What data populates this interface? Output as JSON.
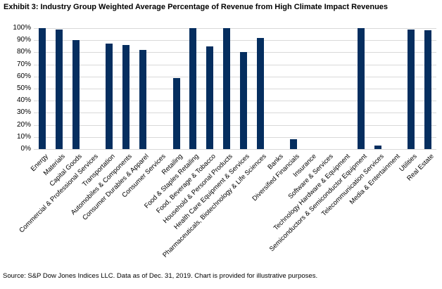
{
  "title": "Exhibit 3: Industry Group Weighted Average Percentage of Revenue from High Climate Impact Revenues",
  "source_note": "Source: S&P Dow Jones Indices LLC. Data as of Dec. 31, 2019. Chart is provided for illustrative purposes.",
  "colors": {
    "bar": "#052e5f",
    "gridline": "#d9d9d9",
    "text": "#000000",
    "background": "#ffffff"
  },
  "chart_data": {
    "type": "bar",
    "title": "Exhibit 3: Industry Group Weighted Average Percentage of Revenue from High Climate Impact Revenues",
    "categories": [
      "Energy",
      "Materials",
      "Capital Goods",
      "Commercial & Professional Services",
      "Transportation",
      "Automobiles & Components",
      "Consumer Durables & Apparel",
      "Consumer Services",
      "Retailing",
      "Food & Staples Retailing",
      "Food, Beverage & Tobacco",
      "Household & Personal Products",
      "Health Care Equipment & Services",
      "Pharmaceuticals, Biotechnology & Life Sciences",
      "Banks",
      "Diversified Financials",
      "Insurance",
      "Software & Services",
      "Technology Hardware & Equipment",
      "Semiconductors & Semiconductor Equipment",
      "Telecommunication Services",
      "Media & Entertainment",
      "Utilities",
      "Real Estate"
    ],
    "values": [
      100,
      99,
      90,
      0,
      87,
      86,
      82,
      0,
      59,
      100,
      85,
      100,
      80,
      92,
      0,
      8,
      0,
      0,
      0,
      100,
      3,
      0,
      99,
      98
    ],
    "xlabel": "",
    "ylabel": "",
    "ylim": [
      0,
      100
    ],
    "ytick_step": 10,
    "y_tick_labels": [
      "0%",
      "10%",
      "20%",
      "30%",
      "40%",
      "50%",
      "60%",
      "70%",
      "80%",
      "90%",
      "100%"
    ],
    "grid": true,
    "legend": "none"
  }
}
